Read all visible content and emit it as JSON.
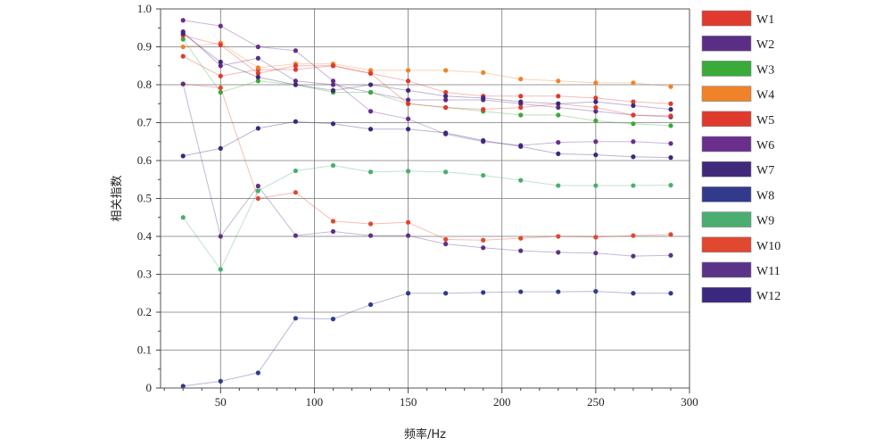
{
  "chart_data": {
    "type": "line",
    "xlabel": "频率/Hz",
    "ylabel": "相关指数",
    "xlim": [
      18,
      300
    ],
    "ylim": [
      0,
      1.0
    ],
    "x_ticks": [
      50,
      100,
      150,
      200,
      250,
      300
    ],
    "y_ticks": [
      0,
      0.1,
      0.2,
      0.3,
      0.4,
      0.5,
      0.6,
      0.7,
      0.8,
      0.9,
      1.0
    ],
    "y_tick_labels": [
      "0",
      "0.1",
      "0.2",
      "0.3",
      "0.4",
      "0.5",
      "0.6",
      "0.7",
      "0.8",
      "0.9",
      "1.0"
    ],
    "grid": true,
    "legend_position": "right",
    "x": [
      30,
      50,
      70,
      90,
      110,
      130,
      150,
      170,
      190,
      210,
      230,
      250,
      270,
      290
    ],
    "series": [
      {
        "name": "W1",
        "color": "#e03a2f",
        "values": [
          0.875,
          0.823,
          0.84,
          0.84,
          0.85,
          0.83,
          0.81,
          0.78,
          0.77,
          0.77,
          0.77,
          0.765,
          0.755,
          0.75
        ]
      },
      {
        "name": "W2",
        "color": "#5b2e86",
        "values": [
          0.94,
          0.85,
          0.87,
          0.81,
          0.8,
          0.78,
          0.76,
          0.76,
          0.76,
          0.75,
          0.74,
          0.73,
          0.72,
          0.715
        ]
      },
      {
        "name": "W3",
        "color": "#3aaa3a",
        "values": [
          0.92,
          0.78,
          0.81,
          0.8,
          0.78,
          0.78,
          0.75,
          0.74,
          0.73,
          0.72,
          0.72,
          0.705,
          0.697,
          0.692
        ]
      },
      {
        "name": "W4",
        "color": "#f08228",
        "values": [
          0.9,
          0.91,
          0.845,
          0.855,
          0.855,
          0.838,
          0.838,
          0.838,
          0.832,
          0.815,
          0.81,
          0.805,
          0.805,
          0.795
        ]
      },
      {
        "name": "W5",
        "color": "#e03a2f",
        "values": [
          0.93,
          0.905,
          0.83,
          0.85,
          0.85,
          0.83,
          0.75,
          0.74,
          0.735,
          0.74,
          0.75,
          0.74,
          0.72,
          0.718
        ]
      },
      {
        "name": "W6",
        "color": "#6a2e8c",
        "values": [
          0.97,
          0.955,
          0.9,
          0.89,
          0.81,
          0.73,
          0.71,
          0.67,
          0.65,
          0.64,
          0.648,
          0.65,
          0.65,
          0.645
        ]
      },
      {
        "name": "W7",
        "color": "#40287a",
        "values": [
          0.935,
          0.86,
          0.82,
          0.8,
          0.785,
          0.8,
          0.785,
          0.77,
          0.765,
          0.755,
          0.75,
          0.755,
          0.745,
          0.735
        ]
      },
      {
        "name": "W8",
        "color": "#323a8c",
        "values": [
          0.005,
          0.018,
          0.04,
          0.184,
          0.182,
          0.22,
          0.25,
          0.25,
          0.252,
          0.254,
          0.254,
          0.255,
          0.25,
          0.25
        ]
      },
      {
        "name": "W9",
        "color": "#4aae70",
        "values": [
          0.45,
          0.313,
          0.52,
          0.573,
          0.587,
          0.57,
          0.572,
          0.57,
          0.561,
          0.548,
          0.534,
          0.534,
          0.534,
          0.535
        ]
      },
      {
        "name": "W10",
        "color": "#e04830",
        "values": [
          0.802,
          0.792,
          0.5,
          0.516,
          0.44,
          0.433,
          0.437,
          0.392,
          0.39,
          0.395,
          0.4,
          0.398,
          0.402,
          0.405
        ]
      },
      {
        "name": "W11",
        "color": "#5a3388",
        "values": [
          0.802,
          0.4,
          0.533,
          0.402,
          0.413,
          0.402,
          0.402,
          0.38,
          0.37,
          0.362,
          0.358,
          0.356,
          0.348,
          0.35
        ]
      },
      {
        "name": "W12",
        "color": "#3a2880",
        "values": [
          0.612,
          0.632,
          0.685,
          0.703,
          0.697,
          0.683,
          0.683,
          0.673,
          0.653,
          0.637,
          0.618,
          0.615,
          0.61,
          0.608
        ]
      }
    ]
  }
}
